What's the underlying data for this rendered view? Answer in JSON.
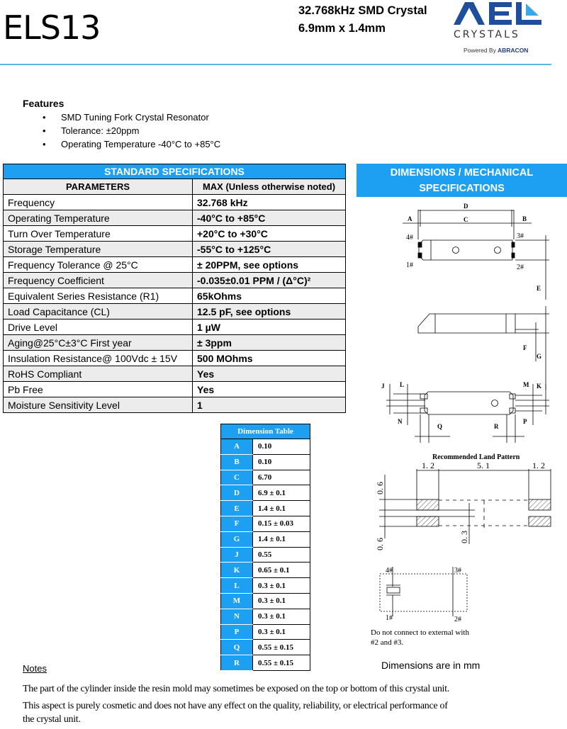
{
  "header": {
    "title": "ELS13",
    "subtitle_line1": "32.768kHz SMD Crystal",
    "subtitle_line2": "6.9mm x 1.4mm",
    "logo": {
      "text_main": "AEL",
      "text_sub": "CRYSTALS",
      "powered_by": "Powered By",
      "brand": "ABRACON",
      "color": "#1f4f9c",
      "accent": "#3aa8e8"
    }
  },
  "features": {
    "heading": "Features",
    "items": [
      "SMD Tuning Fork Crystal Resonator",
      "Tolerance: ±20ppm",
      "Operating Temperature -40°C to +85°C"
    ]
  },
  "spec_table": {
    "caption": "STANDARD SPECIFICATIONS",
    "columns": [
      "PARAMETERS",
      "MAX (Unless otherwise noted)"
    ],
    "rows": [
      [
        "Frequency",
        "32.768 kHz"
      ],
      [
        "Operating Temperature",
        "-40°C to +85°C"
      ],
      [
        "Turn Over Temperature",
        "+20°C to +30°C"
      ],
      [
        "Storage Temperature",
        "-55°C to +125°C"
      ],
      [
        "Frequency Tolerance @ 25°C",
        "± 20PPM, see options"
      ],
      [
        "Frequency Coefficient",
        "-0.035±0.01 PPM / (Δ°C)²"
      ],
      [
        "Equivalent Series Resistance (R1)",
        "65kOhms"
      ],
      [
        "Load Capacitance (CL)",
        "12.5 pF, see options"
      ],
      [
        "Drive Level",
        "1 µW"
      ],
      [
        "Aging@25°C±3°C First year",
        "± 3ppm"
      ],
      [
        "Insulation Resistance@ 100Vdc ± 15V",
        "500 MOhms"
      ],
      [
        "RoHS Compliant",
        "Yes"
      ],
      [
        "Pb Free",
        "Yes"
      ],
      [
        "Moisture Sensitivity Level",
        "1"
      ]
    ]
  },
  "mechanical": {
    "heading_line1": "DIMENSIONS / MECHANICAL",
    "heading_line2": "SPECIFICATIONS",
    "drawing_labels": {
      "A": "A",
      "B": "B",
      "C": "C",
      "D": "D",
      "E": "E",
      "F": "F",
      "G": "G",
      "J": "J",
      "K": "K",
      "L": "L",
      "M": "M",
      "N": "N",
      "P": "P",
      "Q": "Q",
      "R": "R",
      "pin1": "1#",
      "pin2": "2#",
      "pin3": "3#",
      "pin4": "4#"
    },
    "land_pattern": {
      "title": "Recommended Land Pattern",
      "pad_width": "1. 2",
      "pad_gap": "5. 1",
      "pad_height": "0. 6",
      "pad_spacing": "0. 3"
    },
    "schematic_note_line1": "Do not connect to external with",
    "schematic_note_line2": "#2 and #3.",
    "units_note": "Dimensions are in mm"
  },
  "dimension_table": {
    "title": "Dimension Table",
    "rows": [
      [
        "A",
        "0.10"
      ],
      [
        "B",
        "0.10"
      ],
      [
        "C",
        "6.70"
      ],
      [
        "D",
        "6.9 ± 0.1"
      ],
      [
        "E",
        "1.4 ± 0.1"
      ],
      [
        "F",
        "0.15 ± 0.03"
      ],
      [
        "G",
        "1.4 ± 0.1"
      ],
      [
        "J",
        "0.55"
      ],
      [
        "K",
        "0.65 ± 0.1"
      ],
      [
        "L",
        "0.3 ± 0.1"
      ],
      [
        "M",
        "0.3 ± 0.1"
      ],
      [
        "N",
        "0.3 ± 0.1"
      ],
      [
        "P",
        "0.3 ± 0.1"
      ],
      [
        "Q",
        "0.55 ± 0.15"
      ],
      [
        "R",
        "0.55 ± 0.15"
      ]
    ]
  },
  "notes": {
    "heading": "Notes",
    "lines": [
      "The part of the cylinder inside the resin mold may sometimes be exposed on the top or bottom of this crystal unit.",
      "This aspect is purely cosmetic and does not have any effect on the quality, reliability, or electrical performance of",
      "the crystal unit."
    ]
  },
  "colors": {
    "accent_blue": "#1ea0f2",
    "rule": "#5cb6e2",
    "row_alt": "#ececec"
  }
}
